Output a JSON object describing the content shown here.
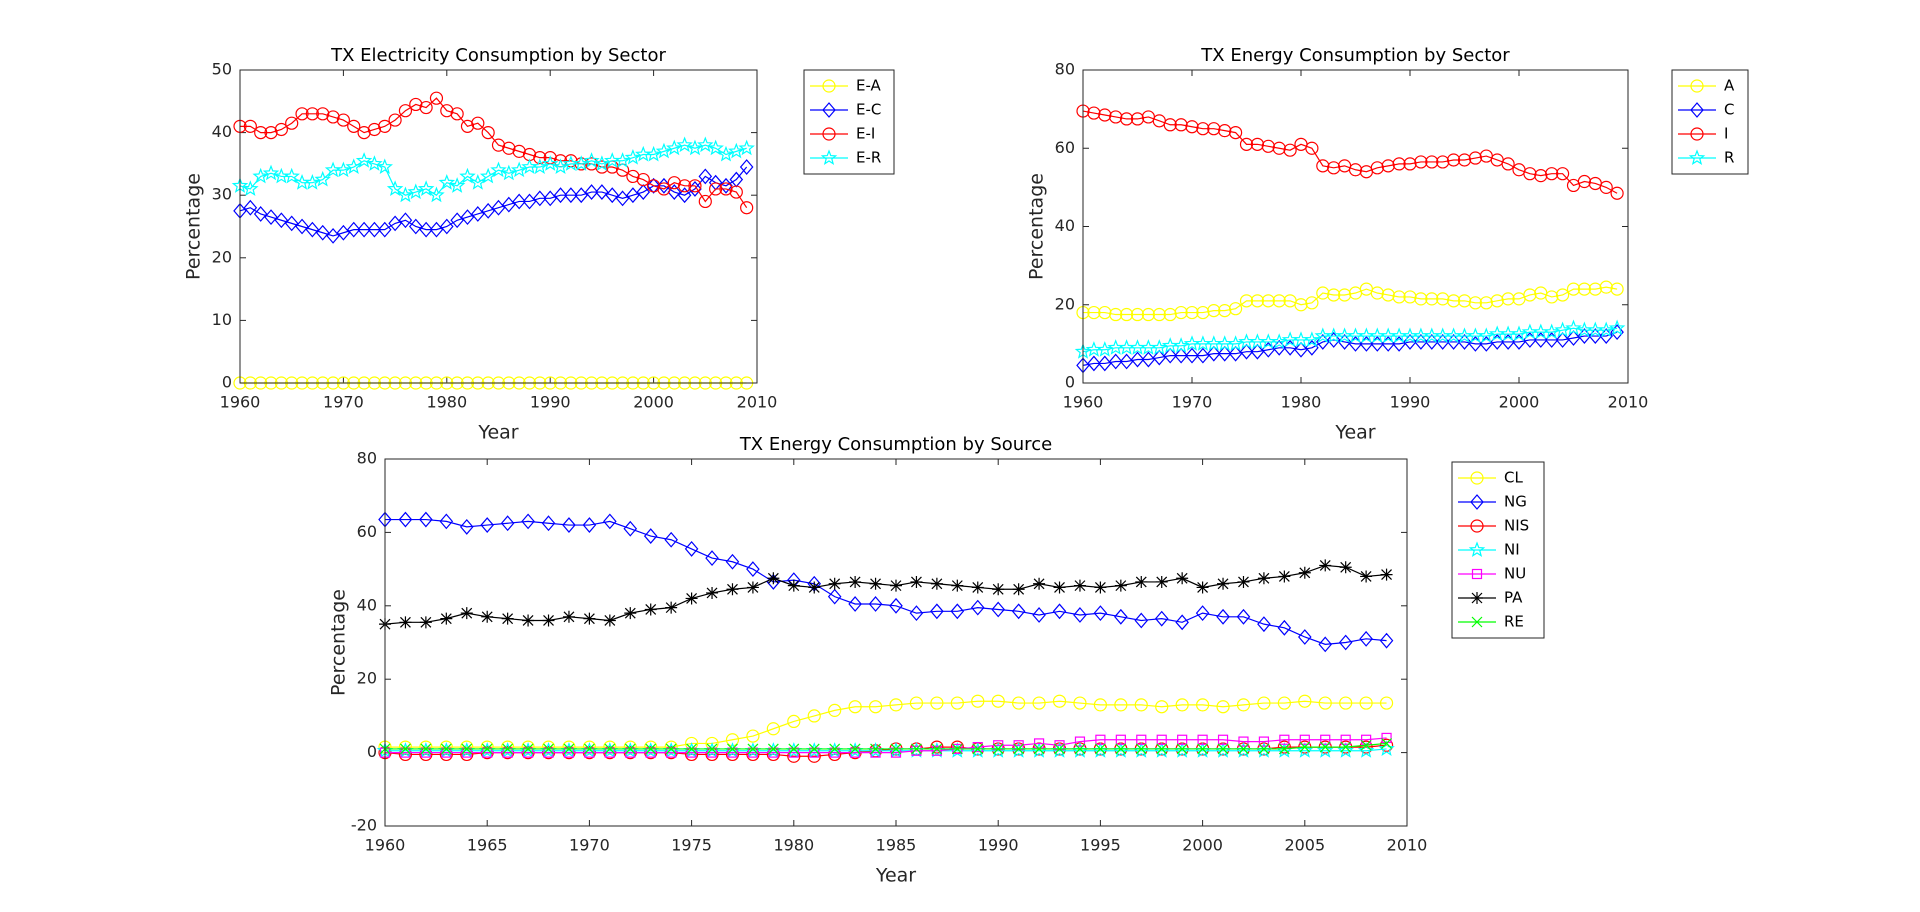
{
  "chart_data": [
    {
      "type": "line",
      "title": "TX Electricity Consumption by Sector",
      "xlabel": "Year",
      "ylabel": "Percentage",
      "x": [
        1960,
        1961,
        1962,
        1963,
        1964,
        1965,
        1966,
        1967,
        1968,
        1969,
        1970,
        1971,
        1972,
        1973,
        1974,
        1975,
        1976,
        1977,
        1978,
        1979,
        1980,
        1981,
        1982,
        1983,
        1984,
        1985,
        1986,
        1987,
        1988,
        1989,
        1990,
        1991,
        1992,
        1993,
        1994,
        1995,
        1996,
        1997,
        1998,
        1999,
        2000,
        2001,
        2002,
        2003,
        2004,
        2005,
        2006,
        2007,
        2008,
        2009
      ],
      "xlim": [
        1960,
        2010
      ],
      "xticks": [
        1960,
        1970,
        1980,
        1990,
        2000,
        2010
      ],
      "ylim": [
        0,
        50
      ],
      "yticks": [
        0,
        10,
        20,
        30,
        40,
        50
      ],
      "grid": false,
      "legend": "outside-right",
      "series": [
        {
          "name": "E-A",
          "color": "#ffff00",
          "marker": "circle",
          "values": [
            0,
            0,
            0,
            0,
            0,
            0,
            0,
            0,
            0,
            0,
            0,
            0,
            0,
            0,
            0,
            0,
            0,
            0,
            0,
            0,
            0,
            0,
            0,
            0,
            0,
            0,
            0,
            0,
            0,
            0,
            0,
            0,
            0,
            0,
            0,
            0,
            0,
            0,
            0,
            0,
            0,
            0,
            0,
            0,
            0,
            0,
            0,
            0,
            0,
            0
          ]
        },
        {
          "name": "E-C",
          "color": "#0000ff",
          "marker": "diamond",
          "values": [
            27.5,
            28,
            27,
            26.5,
            26,
            25.5,
            25,
            24.5,
            24,
            23.5,
            24,
            24.5,
            24.5,
            24.5,
            24.5,
            25.5,
            26,
            25,
            24.5,
            24.5,
            25,
            26,
            26.5,
            27,
            27.5,
            28,
            28.5,
            29,
            29,
            29.5,
            29.5,
            30,
            30,
            30,
            30.5,
            30.5,
            30,
            29.5,
            30,
            30.5,
            31.5,
            31.5,
            30.5,
            30,
            31,
            33,
            32,
            31.5,
            32.5,
            34.5
          ]
        },
        {
          "name": "E-I",
          "color": "#ff0000",
          "marker": "circle",
          "values": [
            41,
            41,
            40,
            40,
            40.5,
            41.5,
            43,
            43,
            43,
            42.5,
            42,
            41,
            40,
            40.5,
            41,
            42,
            43.5,
            44.5,
            44,
            45.5,
            43.5,
            43,
            41,
            41.5,
            40,
            38,
            37.5,
            37,
            36.5,
            36,
            36,
            35.5,
            35.5,
            35,
            35,
            34.5,
            34.5,
            34,
            33,
            32.5,
            31.5,
            31,
            32,
            31.5,
            31.5,
            29,
            31,
            31,
            30.5,
            28
          ]
        },
        {
          "name": "E-R",
          "color": "#00ffff",
          "marker": "pentagram",
          "values": [
            31.5,
            31,
            33,
            33.5,
            33,
            33,
            32,
            32,
            32.5,
            34,
            34,
            34.5,
            35.5,
            35,
            34.5,
            31,
            30,
            30.5,
            31,
            30,
            32,
            31.5,
            33,
            32,
            33,
            34,
            33.5,
            34,
            34.5,
            34.5,
            35,
            34.5,
            35,
            35,
            35.5,
            35,
            35.5,
            35.5,
            36,
            36.5,
            36.5,
            37,
            37.5,
            38,
            37.5,
            38,
            37.5,
            36.5,
            37,
            37.5
          ]
        }
      ]
    },
    {
      "type": "line",
      "title": "TX Energy Consumption by Sector",
      "xlabel": "Year",
      "ylabel": "Percentage",
      "x": [
        1960,
        1961,
        1962,
        1963,
        1964,
        1965,
        1966,
        1967,
        1968,
        1969,
        1970,
        1971,
        1972,
        1973,
        1974,
        1975,
        1976,
        1977,
        1978,
        1979,
        1980,
        1981,
        1982,
        1983,
        1984,
        1985,
        1986,
        1987,
        1988,
        1989,
        1990,
        1991,
        1992,
        1993,
        1994,
        1995,
        1996,
        1997,
        1998,
        1999,
        2000,
        2001,
        2002,
        2003,
        2004,
        2005,
        2006,
        2007,
        2008,
        2009
      ],
      "xlim": [
        1960,
        2010
      ],
      "xticks": [
        1960,
        1970,
        1980,
        1990,
        2000,
        2010
      ],
      "ylim": [
        0,
        80
      ],
      "yticks": [
        0,
        20,
        40,
        60,
        80
      ],
      "grid": false,
      "legend": "outside-right",
      "series": [
        {
          "name": "A",
          "color": "#ffff00",
          "marker": "circle",
          "values": [
            18,
            18,
            18,
            17.5,
            17.5,
            17.5,
            17.5,
            17.5,
            17.5,
            18,
            18,
            18,
            18.5,
            18.5,
            19,
            21,
            21,
            21,
            21,
            21,
            20,
            20.5,
            23,
            22.5,
            22.5,
            23,
            24,
            23,
            22.5,
            22,
            22,
            21.5,
            21.5,
            21.5,
            21,
            21,
            20.5,
            20.5,
            21,
            21.5,
            21.5,
            22.5,
            23,
            22,
            22.5,
            24,
            24,
            24,
            24.5,
            24
          ]
        },
        {
          "name": "C",
          "color": "#0000ff",
          "marker": "diamond",
          "values": [
            4.5,
            5,
            5,
            5.5,
            5.5,
            6,
            6,
            6.5,
            7,
            7,
            7,
            7,
            7.5,
            7.5,
            7.5,
            8,
            8,
            8.5,
            9,
            9,
            8.5,
            9,
            10.5,
            11,
            10.5,
            10,
            10,
            10,
            10,
            10,
            10.5,
            10.5,
            10.5,
            10.5,
            10.5,
            10.5,
            10,
            10,
            10.5,
            10.5,
            10.5,
            11,
            11,
            11,
            11,
            11.5,
            12,
            12,
            12,
            13
          ]
        },
        {
          "name": "I",
          "color": "#ff0000",
          "marker": "circle",
          "values": [
            69.5,
            69,
            68.5,
            68,
            67.5,
            67.5,
            68,
            67,
            66,
            66,
            65.5,
            65,
            65,
            64.5,
            64,
            61,
            61,
            60.5,
            60,
            59.5,
            61,
            60,
            55.5,
            55,
            55.5,
            54.5,
            54,
            55,
            55.5,
            56,
            56,
            56.5,
            56.5,
            56.5,
            57,
            57,
            57.5,
            58,
            57,
            56,
            54.5,
            53.5,
            53,
            53.5,
            53.5,
            50.5,
            51.5,
            51,
            50,
            48.5
          ]
        },
        {
          "name": "R",
          "color": "#00ffff",
          "marker": "pentagram",
          "values": [
            8,
            8.5,
            8.5,
            9,
            9,
            9,
            9,
            9,
            9.5,
            9.5,
            10,
            10,
            10,
            10,
            10,
            10.5,
            10.5,
            10.5,
            10.5,
            11,
            11,
            11,
            12,
            12,
            12,
            12,
            12,
            12,
            12,
            12,
            12,
            12,
            12,
            12,
            12,
            12,
            12,
            12,
            12.5,
            12.5,
            12.5,
            13,
            13,
            13,
            13.5,
            14,
            13.5,
            13.5,
            13.5,
            14
          ]
        }
      ]
    },
    {
      "type": "line",
      "title": "TX Energy Consumption by Source",
      "xlabel": "Year",
      "ylabel": "Percentage",
      "x": [
        1960,
        1961,
        1962,
        1963,
        1964,
        1965,
        1966,
        1967,
        1968,
        1969,
        1970,
        1971,
        1972,
        1973,
        1974,
        1975,
        1976,
        1977,
        1978,
        1979,
        1980,
        1981,
        1982,
        1983,
        1984,
        1985,
        1986,
        1987,
        1988,
        1989,
        1990,
        1991,
        1992,
        1993,
        1994,
        1995,
        1996,
        1997,
        1998,
        1999,
        2000,
        2001,
        2002,
        2003,
        2004,
        2005,
        2006,
        2007,
        2008,
        2009
      ],
      "xlim": [
        1960,
        2010
      ],
      "xticks": [
        1960,
        1965,
        1970,
        1975,
        1980,
        1985,
        1990,
        1995,
        2000,
        2005,
        2010
      ],
      "ylim": [
        -20,
        80
      ],
      "yticks": [
        -20,
        0,
        20,
        40,
        60,
        80
      ],
      "grid": false,
      "legend": "outside-right",
      "series": [
        {
          "name": "CL",
          "color": "#ffff00",
          "marker": "circle",
          "values": [
            1.5,
            1.5,
            1.5,
            1.5,
            1.5,
            1.5,
            1.5,
            1.5,
            1.5,
            1.5,
            1.5,
            1.5,
            1.5,
            1.5,
            1.5,
            2.5,
            2.5,
            3.5,
            4.5,
            6.5,
            8.5,
            10,
            11.5,
            12.5,
            12.5,
            13,
            13.5,
            13.5,
            13.5,
            14,
            14,
            13.5,
            13.5,
            14,
            13.5,
            13,
            13,
            13,
            12.5,
            13,
            13,
            12.5,
            13,
            13.5,
            13.5,
            14,
            13.5,
            13.5,
            13.5,
            13.5
          ]
        },
        {
          "name": "NG",
          "color": "#0000ff",
          "marker": "diamond",
          "values": [
            63.5,
            63.5,
            63.5,
            63,
            61.5,
            62,
            62.5,
            63,
            62.5,
            62,
            62,
            63,
            61,
            59,
            58,
            55.5,
            53,
            52,
            50,
            46.5,
            47,
            46,
            42.5,
            40.5,
            40.5,
            40,
            38,
            38.5,
            38.5,
            39.5,
            39,
            38.5,
            37.5,
            38.5,
            37.5,
            38,
            37,
            36,
            36.5,
            35.5,
            38,
            37,
            37,
            35,
            34,
            31.5,
            29.5,
            30,
            31,
            30.5
          ]
        },
        {
          "name": "NIS",
          "color": "#ff0000",
          "marker": "circle",
          "values": [
            0,
            -0.5,
            -0.5,
            -0.5,
            -0.5,
            0,
            0,
            0,
            0,
            0,
            0,
            0,
            0,
            0,
            0,
            -0.5,
            -0.5,
            -0.5,
            -0.5,
            -0.5,
            -1,
            -1,
            -0.5,
            0,
            0.5,
            1,
            1,
            1.5,
            1.5,
            1,
            1,
            1,
            1,
            1,
            1,
            1,
            1,
            1,
            1,
            1,
            1,
            1,
            1,
            1,
            1.5,
            1.5,
            1.5,
            1.5,
            1.5,
            2
          ]
        },
        {
          "name": "NI",
          "color": "#00ffff",
          "marker": "pentagram",
          "values": [
            0.5,
            0.5,
            0.5,
            0.5,
            0.5,
            0.5,
            0.5,
            0.5,
            0.5,
            0.5,
            0.5,
            0.5,
            0.5,
            0.5,
            0.5,
            0.5,
            0.5,
            0.5,
            0.5,
            0.5,
            0.5,
            0.5,
            0.5,
            0.5,
            0.5,
            0.5,
            0.5,
            0.5,
            0.5,
            0.5,
            0.5,
            0.5,
            0.5,
            0.5,
            0.5,
            0.5,
            0.5,
            0.5,
            0.5,
            0.5,
            0.5,
            0.5,
            0.5,
            0.5,
            0.5,
            0.5,
            0.5,
            0.5,
            0.5,
            1
          ]
        },
        {
          "name": "NU",
          "color": "#ff00ff",
          "marker": "square",
          "values": [
            0,
            0,
            0,
            0,
            0,
            0,
            0,
            0,
            0,
            0,
            0,
            0,
            0,
            0,
            0,
            0,
            0,
            0,
            0,
            0,
            0,
            0,
            0,
            0,
            0,
            0,
            0.5,
            0.5,
            1,
            1.5,
            2,
            2,
            2.5,
            2,
            3,
            3.5,
            3.5,
            3.5,
            3.5,
            3.5,
            3.5,
            3.5,
            3,
            3,
            3.5,
            3.5,
            3.5,
            3.5,
            3.5,
            4
          ]
        },
        {
          "name": "PA",
          "color": "#000000",
          "marker": "asterisk",
          "values": [
            35,
            35.5,
            35.5,
            36.5,
            38,
            37,
            36.5,
            36,
            36,
            37,
            36.5,
            36,
            38,
            39,
            39.5,
            42,
            43.5,
            44.5,
            45,
            47.5,
            45.5,
            45,
            46,
            46.5,
            46,
            45.5,
            46.5,
            46,
            45.5,
            45,
            44.5,
            44.5,
            46,
            45,
            45.5,
            45,
            45.5,
            46.5,
            46.5,
            47.5,
            45,
            46,
            46.5,
            47.5,
            48,
            49,
            51,
            50.5,
            48,
            48.5
          ]
        },
        {
          "name": "RE",
          "color": "#00ff00",
          "marker": "x",
          "values": [
            1,
            1,
            1,
            1,
            1,
            1,
            1,
            1,
            1,
            1,
            1,
            1,
            1,
            1,
            1,
            1,
            1,
            1,
            1,
            1,
            1,
            1,
            1,
            1,
            1,
            1,
            1,
            1,
            1,
            1,
            1,
            1,
            1,
            1,
            1,
            1,
            1,
            1,
            1,
            1,
            1,
            1,
            1,
            1,
            1,
            1.5,
            1.5,
            1.5,
            2,
            2.5
          ]
        }
      ]
    }
  ]
}
